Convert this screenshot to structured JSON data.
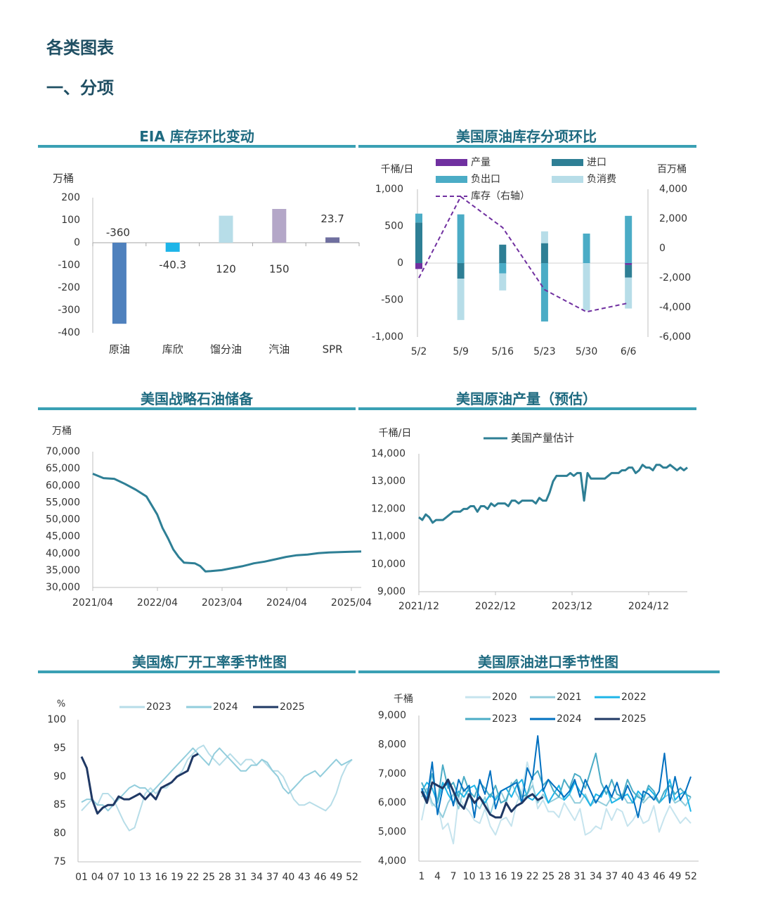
{
  "page": {
    "heading": "各类图表",
    "section": "一、分项"
  },
  "charts": [
    {
      "title": "EIA 库存环比变动",
      "type": "bar",
      "ylabel": "万桶",
      "ylim": [
        -400,
        200
      ],
      "yticks": [
        200,
        100,
        0,
        -100,
        -200,
        -300,
        -400
      ],
      "categories": [
        "原油",
        "库欣",
        "馏分油",
        "汽油",
        "SPR"
      ],
      "values": [
        -360,
        -40.3,
        120,
        150,
        23.7
      ],
      "value_labels": [
        "-360",
        "-40.3",
        "120",
        "150",
        "23.7"
      ],
      "colors": [
        "#4f81bd",
        "#1eb5e8",
        "#b7dde8",
        "#b4a7c8",
        "#6f6f9f"
      ]
    },
    {
      "title": "美国原油库存分项环比",
      "type": "bar",
      "ylabel": "千桶/日",
      "ylabel_right": "百万桶",
      "ylim": [
        -1000,
        1000
      ],
      "ylim_right": [
        -6000,
        4000
      ],
      "yticks": [
        "1,000",
        "500",
        "0",
        "-500",
        "-1,000"
      ],
      "yticks_right": [
        "4,000",
        "2,000",
        "0",
        "-2,000",
        "-4,000",
        "-6,000"
      ],
      "categories": [
        "5/2",
        "5/9",
        "5/16",
        "5/23",
        "5/30",
        "6/6"
      ],
      "series": [
        {
          "name": "产量",
          "color": "#7030a0",
          "values": [
            -80,
            0,
            0,
            0,
            0,
            -25
          ]
        },
        {
          "name": "进口",
          "color": "#2e7f95",
          "values": [
            550,
            -210,
            250,
            270,
            0,
            -170
          ]
        },
        {
          "name": "负出口",
          "color": "#4bacc6",
          "values": [
            120,
            660,
            -140,
            -790,
            400,
            640
          ]
        },
        {
          "name": "负消费",
          "color": "#b7dde8",
          "values": [
            0,
            -560,
            -230,
            160,
            -640,
            -420
          ]
        }
      ],
      "line": {
        "name": "库存（右轴）",
        "color": "#7030a0",
        "values": [
          -2000,
          3500,
          1400,
          -2800,
          -4300,
          -3700
        ]
      }
    },
    {
      "title": "美国战略石油储备",
      "type": "line",
      "ylabel": "万桶",
      "ylim": [
        30000,
        70000
      ],
      "yticks": [
        "70,000",
        "65,000",
        "60,000",
        "55,000",
        "50,000",
        "45,000",
        "40,000",
        "35,000",
        "30,000"
      ],
      "xticks": [
        "2021/04",
        "2022/04",
        "2023/04",
        "2024/04",
        "2025/04"
      ],
      "color": "#2e7f95",
      "series": [
        {
          "x": [
            0,
            2,
            4,
            6,
            8,
            10,
            12,
            13,
            14,
            15,
            16,
            17,
            18,
            19,
            20,
            21,
            22,
            24,
            26,
            28,
            29,
            30,
            32,
            34,
            36,
            38,
            40,
            42,
            44,
            46,
            48,
            50
          ],
          "y": [
            63500,
            62200,
            62000,
            60500,
            58800,
            56800,
            51500,
            47500,
            44500,
            41200,
            39000,
            37300,
            37200,
            37100,
            36300,
            34700,
            34800,
            35100,
            35700,
            36300,
            36700,
            37100,
            37600,
            38300,
            39000,
            39500,
            39700,
            40100,
            40300,
            40400,
            40500,
            40600
          ]
        }
      ]
    },
    {
      "title": "美国原油产量（预估）",
      "type": "line",
      "ylabel": "千桶/日",
      "ylim": [
        9000,
        14000
      ],
      "yticks": [
        "14,000",
        "13,000",
        "12,000",
        "11,000",
        "10,000",
        "9,000"
      ],
      "xticks": [
        "2021/12",
        "2022/12",
        "2023/12",
        "2024/12"
      ],
      "legend": "美国产量估计",
      "color": "#2e7f95",
      "series": [
        {
          "y": [
            11700,
            11600,
            11800,
            11700,
            11500,
            11600,
            11600,
            11600,
            11700,
            11800,
            11900,
            11900,
            11900,
            12000,
            12000,
            12100,
            12100,
            11900,
            12100,
            12100,
            12000,
            12200,
            12100,
            12200,
            12200,
            12200,
            12100,
            12300,
            12300,
            12200,
            12300,
            12300,
            12300,
            12300,
            12200,
            12400,
            12300,
            12300,
            12600,
            13000,
            13200,
            13200,
            13200,
            13200,
            13300,
            13200,
            13300,
            13300,
            12300,
            13300,
            13100,
            13100,
            13100,
            13100,
            13100,
            13200,
            13300,
            13300,
            13300,
            13400,
            13400,
            13500,
            13500,
            13300,
            13400,
            13600,
            13500,
            13500,
            13400,
            13600,
            13600,
            13500,
            13500,
            13600,
            13500,
            13400,
            13500,
            13400,
            13500
          ]
        }
      ]
    },
    {
      "title": "美国炼厂开工率季节性图",
      "type": "line",
      "ylabel": "%",
      "ylim": [
        75,
        100
      ],
      "yticks": [
        100,
        95,
        90,
        85,
        80,
        75
      ],
      "xticks": [
        "01",
        "04",
        "07",
        "10",
        "13",
        "16",
        "19",
        "22",
        "25",
        "28",
        "31",
        "34",
        "37",
        "40",
        "43",
        "46",
        "49",
        "52"
      ],
      "series": [
        {
          "name": "2023",
          "color": "#b7dde8",
          "values": [
            84,
            85,
            86,
            85,
            87,
            87,
            86,
            84,
            82,
            80.5,
            81,
            84,
            87,
            88,
            87,
            88,
            88,
            89,
            90,
            91,
            93,
            94,
            95,
            95.5,
            94,
            93,
            92,
            93,
            94,
            93,
            92,
            93,
            93,
            92,
            93,
            92,
            91,
            91,
            90,
            88,
            86,
            85,
            85,
            85.5,
            85,
            84.5,
            84,
            85,
            87,
            90,
            92,
            93
          ]
        },
        {
          "name": "2024",
          "color": "#92cddc",
          "values": [
            85.5,
            86,
            86,
            85,
            85,
            84,
            85,
            86,
            87,
            88,
            88.5,
            88,
            88,
            87,
            88,
            89,
            90,
            91,
            92,
            93,
            94,
            95,
            94,
            93,
            92,
            94,
            95,
            94,
            93,
            92,
            91,
            91,
            92,
            92,
            93,
            92.5,
            91,
            90,
            88,
            87,
            88,
            89,
            90,
            90.5,
            91,
            90,
            91,
            92,
            93,
            92,
            92.5,
            93
          ]
        },
        {
          "name": "2025",
          "color": "#1f3864",
          "values": [
            93.5,
            91.5,
            86,
            83.5,
            84.5,
            85,
            85,
            86.5,
            86,
            86,
            86.5,
            87,
            86,
            87,
            86,
            88,
            88.5,
            89,
            90,
            90.5,
            91,
            93.5,
            94
          ]
        }
      ]
    },
    {
      "title": "美国原油进口季节性图",
      "type": "line",
      "ylabel": "千桶",
      "ylim": [
        4000,
        9000
      ],
      "yticks": [
        "9,000",
        "8,000",
        "7,000",
        "6,000",
        "5,000",
        "4,000"
      ],
      "xticks": [
        "1",
        "4",
        "7",
        "10",
        "13",
        "16",
        "19",
        "22",
        "25",
        "28",
        "31",
        "34",
        "37",
        "40",
        "43",
        "46",
        "49",
        "52"
      ],
      "series": [
        {
          "name": "2020",
          "color": "#c6e4ee",
          "values": [
            5400,
            6300,
            5900,
            6000,
            5100,
            5300,
            4600,
            6200,
            5900,
            5700,
            5400,
            5300,
            5800,
            5200,
            4900,
            5400,
            5500,
            5200,
            6000,
            6400,
            7400,
            6700,
            5800,
            6100,
            5700,
            5700,
            5500,
            6000,
            5700,
            5400,
            5800,
            4900,
            5000,
            5200,
            5100,
            5800,
            5400,
            5800,
            5700,
            5200,
            5400,
            5700,
            5300,
            5400,
            5900,
            5000,
            5500,
            5900,
            5600,
            5300,
            5500,
            5300
          ]
        },
        {
          "name": "2021",
          "color": "#92cddc",
          "values": [
            6200,
            6500,
            6000,
            5800,
            5500,
            6000,
            6300,
            5800,
            6500,
            6200,
            6000,
            5800,
            6200,
            5600,
            6200,
            6400,
            6000,
            6700,
            6300,
            6000,
            6300,
            6600,
            6000,
            6300,
            6000,
            6100,
            6200,
            6100,
            6300,
            6000,
            6000,
            6300,
            5900,
            6100,
            6000,
            5900,
            6200,
            6100,
            6300,
            6000,
            6000,
            6300,
            6000,
            6200,
            6200,
            6000,
            6200,
            6300,
            6000,
            6100,
            5900,
            6200
          ]
        },
        {
          "name": "2022",
          "color": "#1eb5e8",
          "values": [
            6400,
            6700,
            6500,
            6000,
            6700,
            6300,
            6000,
            6400,
            6200,
            6500,
            6600,
            6200,
            6000,
            6300,
            6100,
            6400,
            6500,
            6200,
            6600,
            6800,
            6200,
            6100,
            6300,
            6500,
            6000,
            6300,
            6600,
            6100,
            6300,
            6700,
            6400,
            6200,
            5900,
            6300,
            6200,
            6600,
            6000,
            6100,
            6200,
            6300,
            6000,
            6400,
            6200,
            6500,
            6300,
            6000,
            6200,
            6800,
            6100,
            6300,
            6400,
            5700
          ]
        },
        {
          "name": "2023",
          "color": "#4bacc6",
          "values": [
            6700,
            6300,
            7000,
            6000,
            7300,
            6500,
            6700,
            6200,
            6900,
            6400,
            6200,
            6700,
            6500,
            6200,
            6600,
            6000,
            6100,
            6600,
            6800,
            6200,
            6300,
            6900,
            7100,
            6600,
            6800,
            6400,
            6200,
            6800,
            6500,
            7000,
            6900,
            6500,
            7100,
            7700,
            6700,
            6300,
            6800,
            6300,
            6200,
            6800,
            6400,
            6200,
            6100,
            6600,
            6400,
            6000,
            6400,
            6600,
            6300,
            6500,
            6300,
            6200
          ]
        },
        {
          "name": "2024",
          "color": "#0070c0",
          "values": [
            6500,
            6100,
            7400,
            5600,
            6500,
            6700,
            5900,
            6800,
            6400,
            6600,
            5500,
            6800,
            6300,
            7100,
            5800,
            6400,
            6500,
            6600,
            6700,
            6000,
            7200,
            6800,
            8300,
            6400,
            6800,
            6600,
            6400,
            6200,
            6400,
            6800,
            6200,
            6800,
            6400,
            6000,
            6300,
            6600,
            6200,
            6700,
            6100,
            6600,
            6200,
            5500,
            6400,
            6300,
            6100,
            6400,
            7700,
            6000,
            6900,
            6100,
            6400,
            6900
          ]
        },
        {
          "name": "2025",
          "color": "#1f3864",
          "values": [
            6400,
            6000,
            6700,
            6600,
            6500,
            6800,
            6400,
            6000,
            5800,
            6300,
            6000,
            6200,
            5900,
            5600,
            5500,
            5500,
            6000,
            5700,
            5900,
            6000,
            6200,
            6300,
            6100,
            6200
          ]
        }
      ]
    }
  ]
}
